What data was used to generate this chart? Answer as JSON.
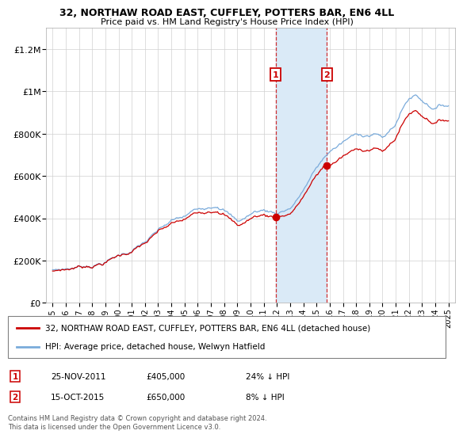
{
  "title": "32, NORTHAW ROAD EAST, CUFFLEY, POTTERS BAR, EN6 4LL",
  "subtitle": "Price paid vs. HM Land Registry's House Price Index (HPI)",
  "red_label": "32, NORTHAW ROAD EAST, CUFFLEY, POTTERS BAR, EN6 4LL (detached house)",
  "blue_label": "HPI: Average price, detached house, Welwyn Hatfield",
  "footnote": "Contains HM Land Registry data © Crown copyright and database right 2024.\nThis data is licensed under the Open Government Licence v3.0.",
  "ann1_date": "25-NOV-2011",
  "ann1_price": "£405,000",
  "ann1_pct": "24% ↓ HPI",
  "ann2_date": "15-OCT-2015",
  "ann2_price": "£650,000",
  "ann2_pct": "8% ↓ HPI",
  "sale1_x": 2011.9,
  "sale1_y": 405000,
  "sale2_x": 2015.79,
  "sale2_y": 650000,
  "highlight_xmin": 2011.9,
  "highlight_xmax": 2015.79,
  "red_color": "#cc0000",
  "blue_color": "#7aabdb",
  "highlight_color": "#daeaf7",
  "ylim_min": 0,
  "ylim_max": 1300000,
  "xlim_min": 1994.5,
  "xlim_max": 2025.5,
  "yticks": [
    0,
    200000,
    400000,
    600000,
    800000,
    1000000,
    1200000
  ],
  "ylabels": [
    "£0",
    "£200K",
    "£400K",
    "£600K",
    "£800K",
    "£1M",
    "£1.2M"
  ]
}
